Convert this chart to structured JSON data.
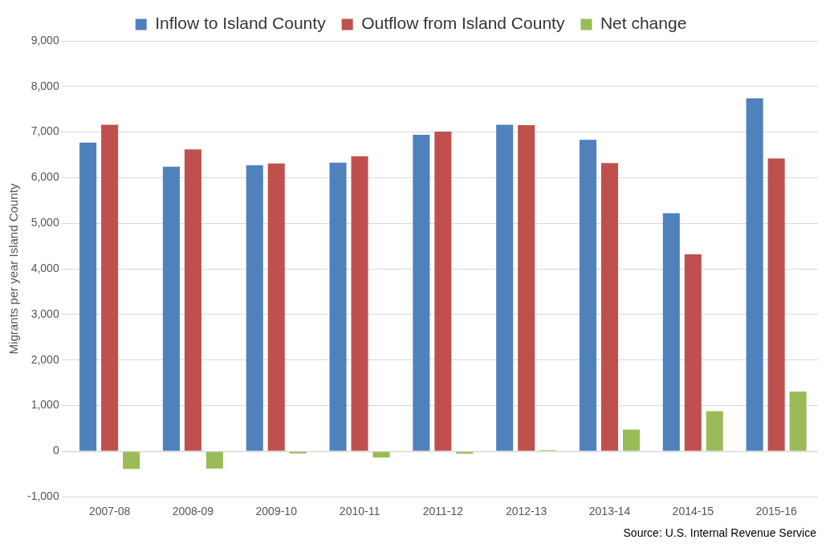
{
  "chart_data": {
    "type": "bar",
    "ylabel": "Migrants per year Island County",
    "categories": [
      "2007-08",
      "2008-09",
      "2009-10",
      "2010-11",
      "2011-12",
      "2012-13",
      "2013-14",
      "2014-15",
      "2015-16"
    ],
    "series": [
      {
        "name": "Inflow to Island County",
        "color": "#4f81bd",
        "values": [
          6770,
          6240,
          6270,
          6330,
          6940,
          7160,
          6830,
          5220,
          7740
        ]
      },
      {
        "name": "Outflow from Island County",
        "color": "#c0504d",
        "values": [
          7160,
          6620,
          6310,
          6470,
          7010,
          7150,
          6320,
          4320,
          6420
        ]
      },
      {
        "name": "Net change",
        "color": "#9bbb59",
        "values": [
          -390,
          -380,
          -50,
          -140,
          -55,
          25,
          475,
          880,
          1310
        ]
      }
    ],
    "ylim": [
      -1000,
      9000
    ],
    "yticks": [
      {
        "value": -1000,
        "label": "-1,000"
      },
      {
        "value": 0,
        "label": "0"
      },
      {
        "value": 1000,
        "label": "1,000"
      },
      {
        "value": 2000,
        "label": "2,000"
      },
      {
        "value": 3000,
        "label": "3,000"
      },
      {
        "value": 4000,
        "label": "4,000"
      },
      {
        "value": 5000,
        "label": "5,000"
      },
      {
        "value": 6000,
        "label": "6,000"
      },
      {
        "value": 7000,
        "label": "7,000"
      },
      {
        "value": 8000,
        "label": "8,000"
      },
      {
        "value": 9000,
        "label": "9,000"
      }
    ],
    "grid": "y",
    "legend": "top",
    "annotations": [
      "Source: U.S. Internal Revenue Service"
    ]
  }
}
